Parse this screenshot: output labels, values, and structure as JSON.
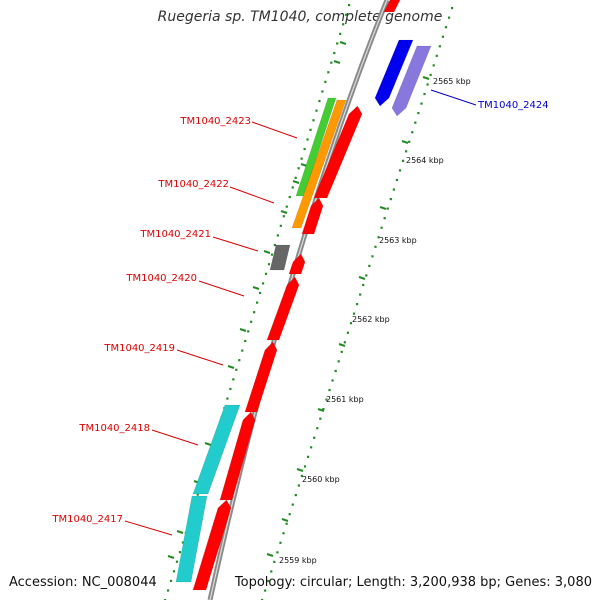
{
  "title": "Ruegeria sp. TM1040, complete genome",
  "footer": {
    "accession": "Accession: NC_008044",
    "summary": "Topology: circular; Length: 3,200,938 bp; Genes: 3,080"
  },
  "scale_labels": [
    "2565 kbp",
    "2564 kbp",
    "2563 kbp",
    "2562 kbp",
    "2561 kbp",
    "2560 kbp",
    "2559 kbp"
  ],
  "gene_labels": [
    {
      "id": "TM1040_2424",
      "color": "#0000cc"
    },
    {
      "id": "TM1040_2423",
      "color": "#dd0000"
    },
    {
      "id": "TM1040_2422",
      "color": "#dd0000"
    },
    {
      "id": "TM1040_2421",
      "color": "#dd0000"
    },
    {
      "id": "TM1040_2420",
      "color": "#dd0000"
    },
    {
      "id": "TM1040_2419",
      "color": "#dd0000"
    },
    {
      "id": "TM1040_2418",
      "color": "#dd0000"
    },
    {
      "id": "TM1040_2417",
      "color": "#dd0000"
    }
  ],
  "colors": {
    "backbone": "#8a8a8a",
    "cds": "#ff0000",
    "tick_dots": "#228b22",
    "blue_gene": "#0000ee",
    "purple_gene": "#8877dd",
    "green_gene": "#44cc33",
    "orange_gene": "#ff9900",
    "gray_gene": "#666666",
    "cyan_gene": "#22cccc"
  }
}
